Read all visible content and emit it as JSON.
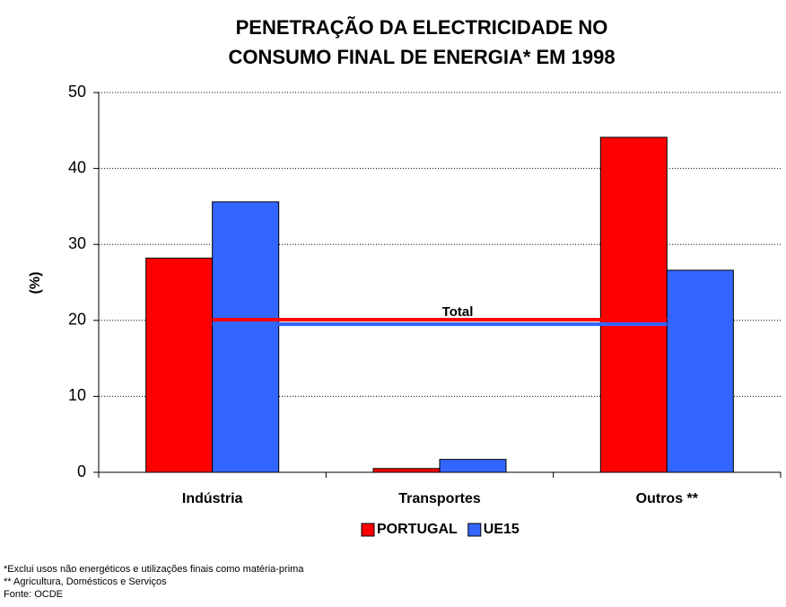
{
  "chart_data": {
    "type": "bar",
    "title": [
      "PENETRAÇÃO DA ELECTRICIDADE NO",
      "CONSUMO FINAL DE ENERGIA* EM 1998"
    ],
    "y_label": "(%)",
    "categories": [
      "Indústria",
      "Transportes",
      "Outros **"
    ],
    "series": [
      {
        "name": "PORTUGAL",
        "color": "#ff0000",
        "values": [
          28.2,
          0.5,
          44.1
        ]
      },
      {
        "name": "UE15",
        "color": "#3366ff",
        "values": [
          35.6,
          1.7,
          26.6
        ]
      }
    ],
    "total": {
      "label": "Total",
      "values": [
        20.1,
        19.5
      ]
    },
    "ylim": [
      0,
      50
    ],
    "yticks": [
      0,
      10,
      20,
      30,
      40,
      50
    ],
    "grid": true,
    "notes": [
      "*Exclui usos não energéticos e utilizações finais como matéria-prima",
      "** Agricultura, Domésticos e Serviços",
      "Fonte: OCDE"
    ]
  }
}
